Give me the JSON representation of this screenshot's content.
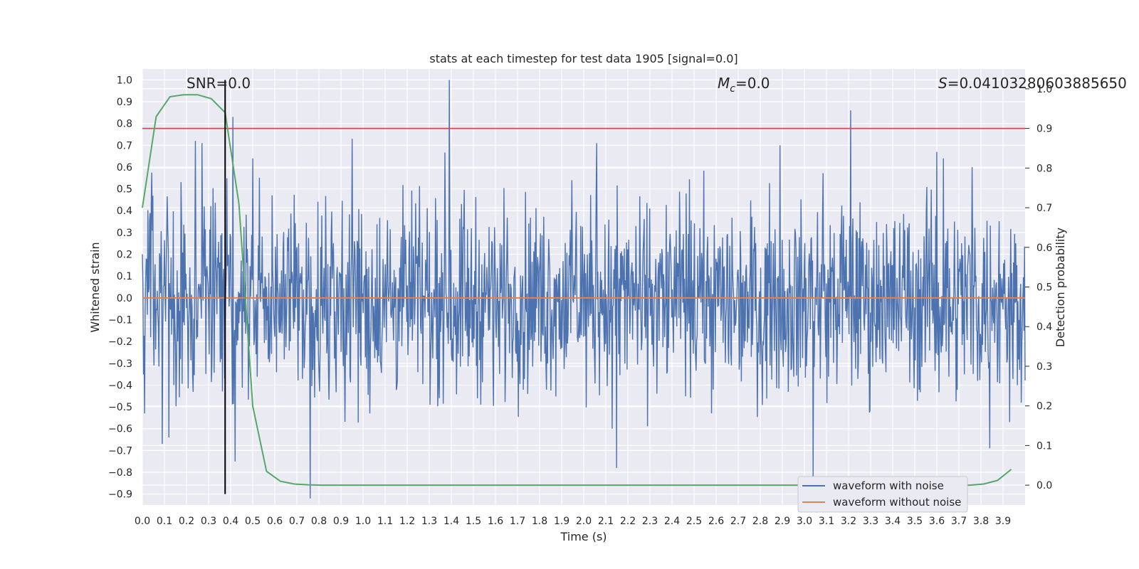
{
  "chart_data": {
    "type": "line",
    "title": "stats at each timestep for test data 1905 [signal=0.0]",
    "xlabel": "Time (s)",
    "ylabel": "Whitened strain",
    "y2label": "Detection probability",
    "xlim": [
      0.0,
      4.0
    ],
    "ylim": [
      -0.95,
      1.05
    ],
    "y2lim": [
      -0.05,
      1.05
    ],
    "x_ticks": [
      0.0,
      0.1,
      0.2,
      0.3,
      0.4,
      0.5,
      0.6,
      0.7,
      0.8,
      0.9,
      1.0,
      1.1,
      1.2,
      1.3,
      1.4,
      1.5,
      1.6,
      1.7,
      1.8,
      1.9,
      2.0,
      2.1,
      2.2,
      2.3,
      2.4,
      2.5,
      2.6,
      2.7,
      2.8,
      2.9,
      3.0,
      3.1,
      3.2,
      3.3,
      3.4,
      3.5,
      3.6,
      3.7,
      3.8,
      3.9
    ],
    "x_tick_labels": [
      "0.0",
      "0.1",
      "0.2",
      "0.3",
      "0.4",
      "0.5",
      "0.6",
      "0.7",
      "0.8",
      "0.9",
      "1.0",
      "1.1",
      "1.2",
      "1.3",
      "1.4",
      "1.5",
      "1.6",
      "1.7",
      "1.8",
      "1.9",
      "2.0",
      "2.1",
      "2.2",
      "2.3",
      "2.4",
      "2.5",
      "2.6",
      "2.7",
      "2.8",
      "2.9",
      "3.0",
      "3.1",
      "3.2",
      "3.3",
      "3.4",
      "3.5",
      "3.6",
      "3.7",
      "3.8",
      "3.9"
    ],
    "y_ticks": [
      1.0,
      0.9,
      0.8,
      0.7,
      0.6,
      0.5,
      0.4,
      0.3,
      0.2,
      0.1,
      0.0,
      -0.1,
      -0.2,
      -0.3,
      -0.4,
      -0.5,
      -0.6,
      -0.7,
      -0.8,
      -0.9
    ],
    "y_tick_labels": [
      "1.0",
      "0.9",
      "0.8",
      "0.7",
      "0.6",
      "0.5",
      "0.4",
      "0.3",
      "0.2",
      "0.1",
      "0.0",
      "−0.1",
      "−0.2",
      "−0.3",
      "−0.4",
      "−0.5",
      "−0.6",
      "−0.7",
      "−0.8",
      "−0.9"
    ],
    "y2_ticks": [
      1.0,
      0.9,
      0.8,
      0.7,
      0.6,
      0.5,
      0.4,
      0.3,
      0.2,
      0.1,
      0.0
    ],
    "y2_tick_labels": [
      "1.0",
      "0.9",
      "0.8",
      "0.7",
      "0.6",
      "0.5",
      "0.4",
      "0.3",
      "0.2",
      "0.1",
      "0.0"
    ],
    "annotations": {
      "snr": "SNR=0.0",
      "mc_symbol": "M",
      "mc_sub": "c",
      "mc_value": "=0.0",
      "s_symbol": "S",
      "s_value": "=0.04103280603885650"
    },
    "series": [
      {
        "name": "waveform with noise",
        "color": "#4c72b0",
        "kind": "noise",
        "typical_range": [
          -0.45,
          0.45
        ],
        "spikes": [
          {
            "x": 0.01,
            "y": -0.53
          },
          {
            "x": 0.09,
            "y": -0.67
          },
          {
            "x": 0.12,
            "y": -0.64
          },
          {
            "x": 0.24,
            "y": 0.72
          },
          {
            "x": 0.27,
            "y": 0.71
          },
          {
            "x": 0.41,
            "y": 0.83
          },
          {
            "x": 0.42,
            "y": -0.75
          },
          {
            "x": 0.5,
            "y": 0.64
          },
          {
            "x": 0.76,
            "y": -0.92
          },
          {
            "x": 0.95,
            "y": 0.73
          },
          {
            "x": 1.03,
            "y": -0.53
          },
          {
            "x": 1.39,
            "y": 1.0
          },
          {
            "x": 2.06,
            "y": 0.71
          },
          {
            "x": 2.13,
            "y": -0.6
          },
          {
            "x": 2.15,
            "y": -0.78
          },
          {
            "x": 2.89,
            "y": 0.7
          },
          {
            "x": 3.04,
            "y": -0.83
          },
          {
            "x": 3.21,
            "y": 0.86
          },
          {
            "x": 3.6,
            "y": 0.67
          },
          {
            "x": 3.63,
            "y": 0.64
          },
          {
            "x": 3.84,
            "y": -0.69
          },
          {
            "x": 3.93,
            "y": -0.57
          },
          {
            "x": 3.76,
            "y": 0.6
          }
        ]
      },
      {
        "name": "waveform without noise",
        "color": "#dd8452",
        "x": [
          0.0,
          4.0
        ],
        "y": [
          0.0,
          0.0
        ]
      },
      {
        "name": "detection probability",
        "axis": "right",
        "color": "#55a868",
        "x": [
          0.0,
          0.0625,
          0.125,
          0.1875,
          0.25,
          0.3125,
          0.375,
          0.4375,
          0.5,
          0.5625,
          0.625,
          0.6875,
          0.75,
          0.8125,
          0.875,
          1.0,
          1.5,
          2.0,
          2.5,
          3.0,
          3.5,
          3.75,
          3.8125,
          3.875,
          3.9375
        ],
        "y": [
          0.7,
          0.93,
          0.98,
          0.985,
          0.985,
          0.975,
          0.94,
          0.71,
          0.2,
          0.035,
          0.01,
          0.003,
          0.001,
          0.0,
          0.0,
          0.0,
          0.0,
          0.0,
          0.0,
          0.0,
          0.0,
          0.0,
          0.003,
          0.012,
          0.04
        ]
      }
    ],
    "threshold_line": {
      "axis": "right",
      "y": 0.9,
      "color": "#c44e52"
    },
    "vertical_marker": {
      "x": 0.375,
      "color": "#000000"
    },
    "legend": {
      "placement": "lower right",
      "entries": [
        {
          "label": "waveform with noise",
          "color": "#4c72b0"
        },
        {
          "label": "waveform without noise",
          "color": "#dd8452"
        }
      ]
    },
    "grid": true
  }
}
